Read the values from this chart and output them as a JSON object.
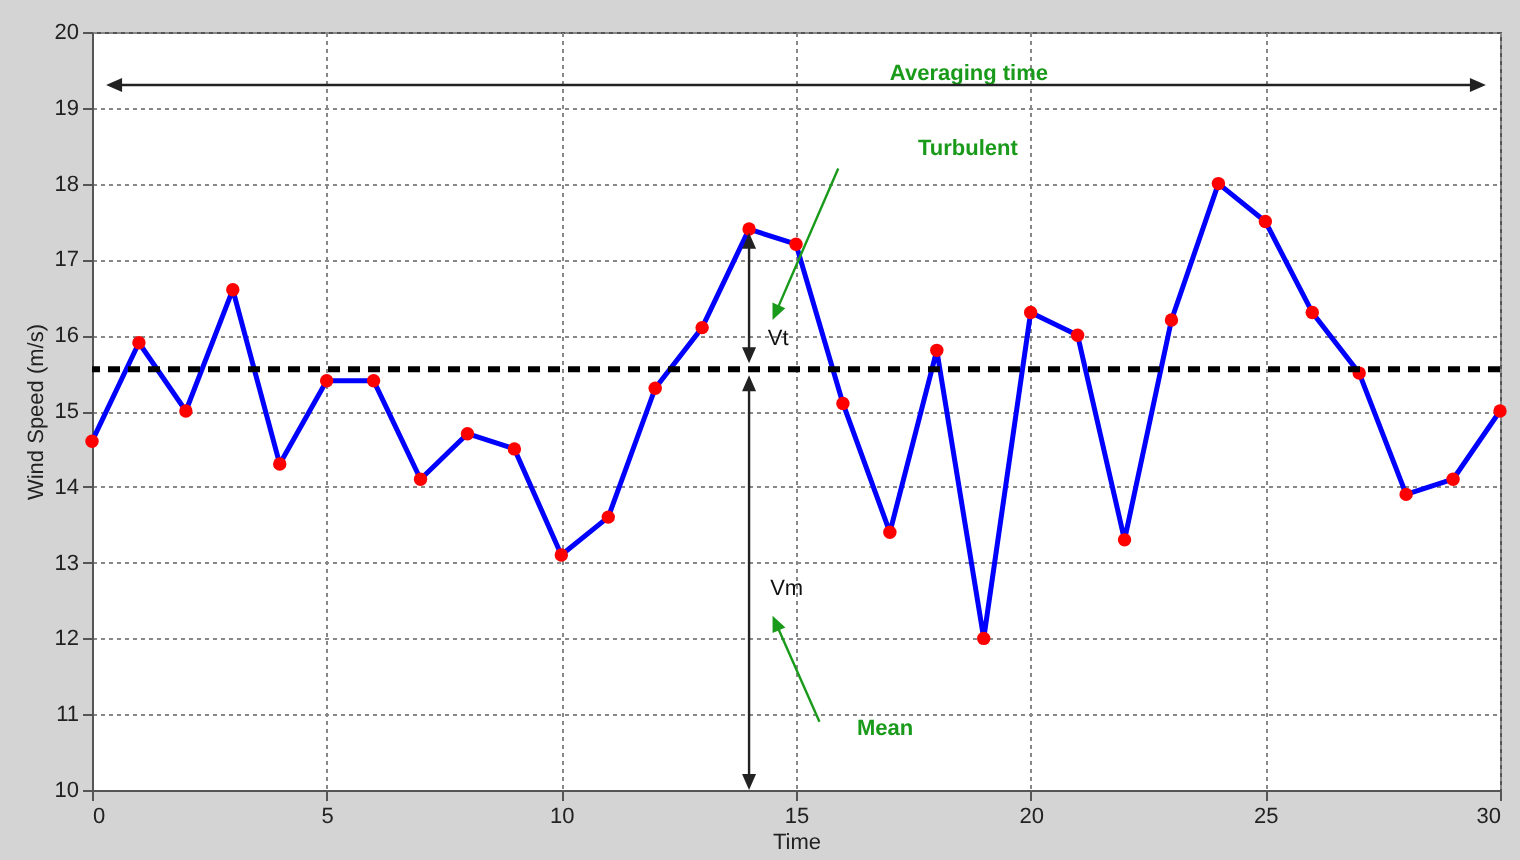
{
  "chart_data": {
    "type": "line",
    "xlabel": "Time",
    "ylabel": "Wind Speed (m/s)",
    "x": [
      0,
      1,
      2,
      3,
      4,
      5,
      6,
      7,
      8,
      9,
      10,
      11,
      12,
      13,
      14,
      15,
      16,
      17,
      18,
      19,
      20,
      21,
      22,
      23,
      24,
      25,
      26,
      27,
      28,
      29,
      30
    ],
    "series": [
      {
        "color": "#0000ff",
        "values": [
          14.6,
          15.9,
          15.0,
          16.6,
          14.3,
          15.4,
          15.4,
          14.1,
          14.7,
          14.5,
          13.1,
          13.6,
          15.3,
          16.1,
          17.4,
          17.2,
          15.1,
          13.4,
          15.8,
          12.0,
          16.3,
          16.0,
          13.3,
          16.2,
          18.0,
          17.5,
          16.3,
          15.5,
          13.9,
          14.1,
          15.0
        ]
      }
    ],
    "marker": "circle",
    "line_style": "solid",
    "xlim": [
      0,
      30
    ],
    "xticks": [
      0,
      5,
      10,
      15,
      20,
      25,
      30
    ],
    "ylim": [
      10,
      20
    ],
    "yticks": [
      10,
      11,
      12,
      13,
      14,
      15,
      16,
      17,
      18,
      19,
      20
    ],
    "grid": true,
    "ref_lines": [
      {
        "axis": "y",
        "value": 15.55,
        "color": "#000000",
        "line_style": "dashed"
      }
    ],
    "annotations": [
      "Averaging time",
      "Turbulent",
      "Vt",
      "Vm",
      "Mean"
    ]
  }
}
